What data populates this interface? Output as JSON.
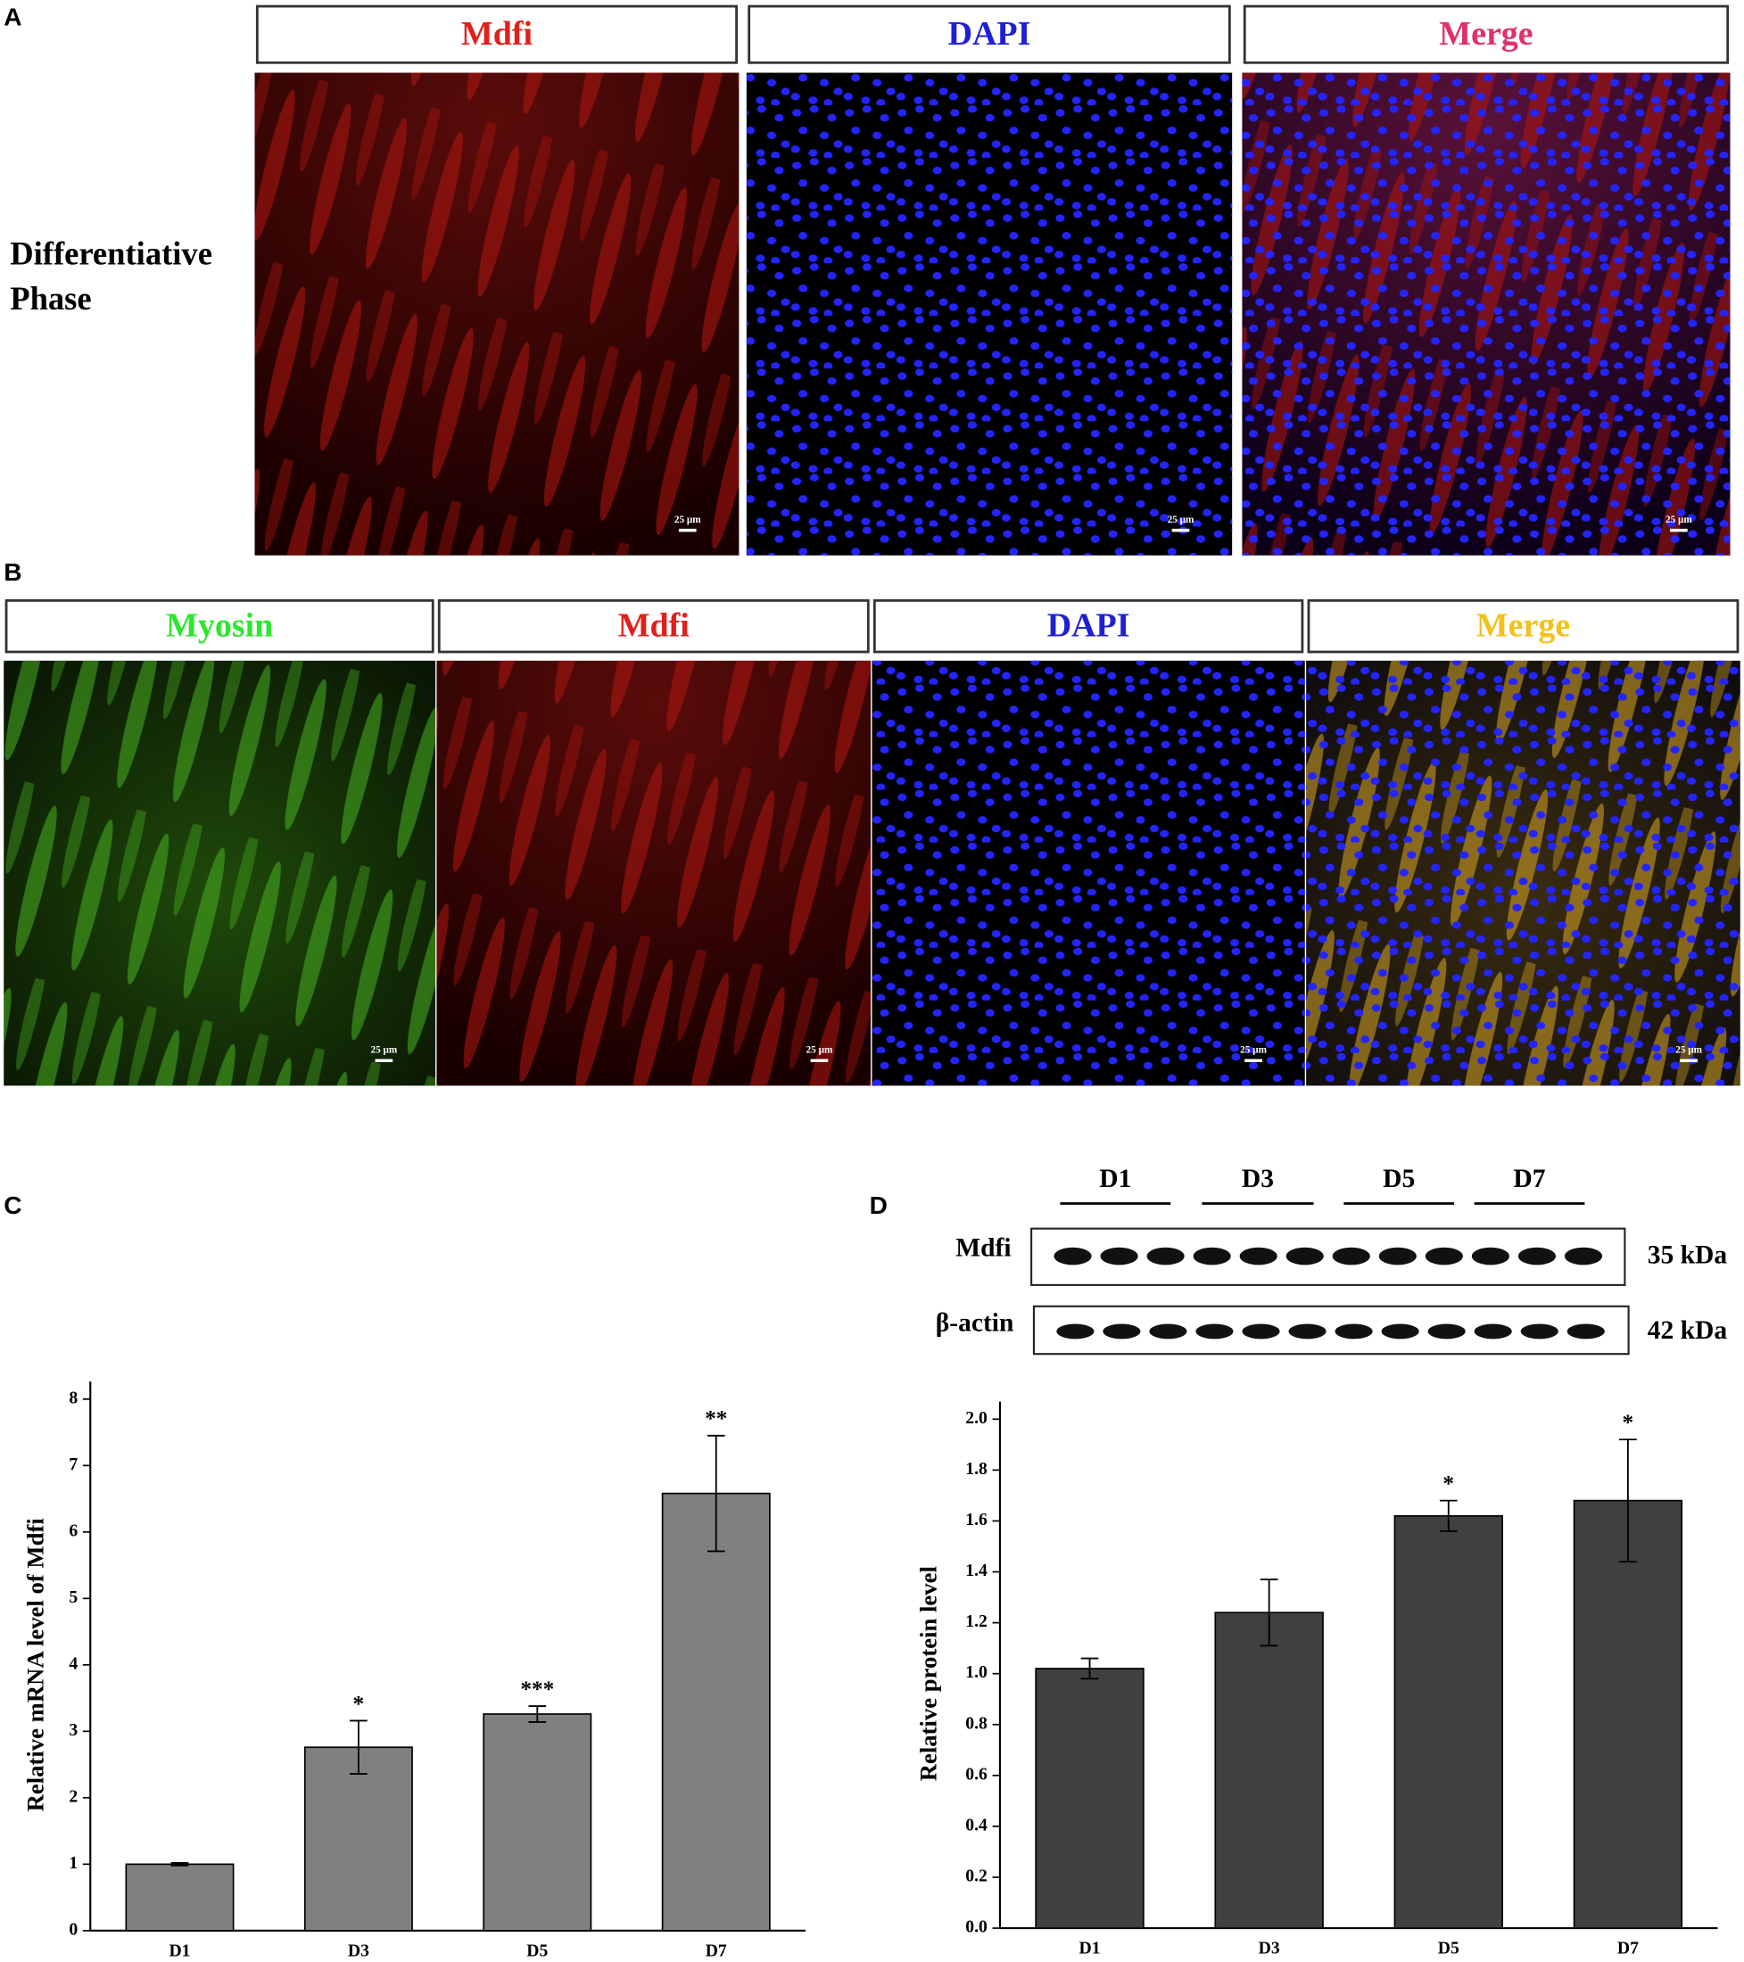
{
  "panel_labels": [
    "A",
    "B",
    "C",
    "D"
  ],
  "panel_a": {
    "row_label": [
      "Differentiative",
      "Phase"
    ],
    "channels": [
      {
        "name": "Mdfi",
        "color": "#e0201b"
      },
      {
        "name": "DAPI",
        "color": "#1f1fd6"
      },
      {
        "name": "Merge",
        "color": "#e0306a"
      }
    ],
    "scale_bar": "25 μm"
  },
  "panel_b": {
    "channels": [
      {
        "name": "Myosin",
        "color": "#2ee62e"
      },
      {
        "name": "Mdfi",
        "color": "#e0201b"
      },
      {
        "name": "DAPI",
        "color": "#1f1fd6"
      },
      {
        "name": "Merge",
        "color": "#f2c21a"
      }
    ],
    "scale_bar": "25 μm"
  },
  "blot": {
    "lanes": [
      "D1",
      "D3",
      "D5",
      "D7"
    ],
    "rows": [
      {
        "protein": "Mdfi",
        "size": "35 kDa"
      },
      {
        "protein": "β-actin",
        "size": "42 kDa"
      }
    ]
  },
  "chart_data": [
    {
      "type": "bar",
      "y_label": "Relative mRNA level of Mdfi",
      "categories": [
        "D1",
        "D3",
        "D5",
        "D7"
      ],
      "values": [
        1.0,
        2.76,
        3.26,
        6.58
      ],
      "errors": [
        0.02,
        0.4,
        0.12,
        0.87
      ],
      "annotations": [
        null,
        "*",
        "***",
        "**"
      ],
      "color": "#808080",
      "ylim": [
        0,
        8
      ],
      "yticks": [
        0,
        1,
        2,
        3,
        4,
        5,
        6,
        7,
        8
      ]
    },
    {
      "type": "bar",
      "y_label": "Relative protein level",
      "categories": [
        "D1",
        "D3",
        "D5",
        "D7"
      ],
      "values": [
        1.02,
        1.24,
        1.62,
        1.68
      ],
      "errors": [
        0.04,
        0.13,
        0.06,
        0.24
      ],
      "annotations": [
        null,
        null,
        "*",
        "*"
      ],
      "color": "#404040",
      "ylim": [
        0,
        2
      ],
      "yticks": [
        {
          "value": 0,
          "label": "0.0"
        },
        {
          "value": 0.2,
          "label": "0.2"
        },
        {
          "value": 0.4,
          "label": "0.4"
        },
        {
          "value": 0.6,
          "label": "0.6"
        },
        {
          "value": 0.8,
          "label": "0.8"
        },
        {
          "value": 1,
          "label": "1.0"
        },
        {
          "value": 1.2,
          "label": "1.2"
        },
        {
          "value": 1.4,
          "label": "1.4"
        },
        {
          "value": 1.6,
          "label": "1.6"
        },
        {
          "value": 1.8,
          "label": "1.8"
        },
        {
          "value": 2,
          "label": "2.0"
        }
      ]
    }
  ]
}
